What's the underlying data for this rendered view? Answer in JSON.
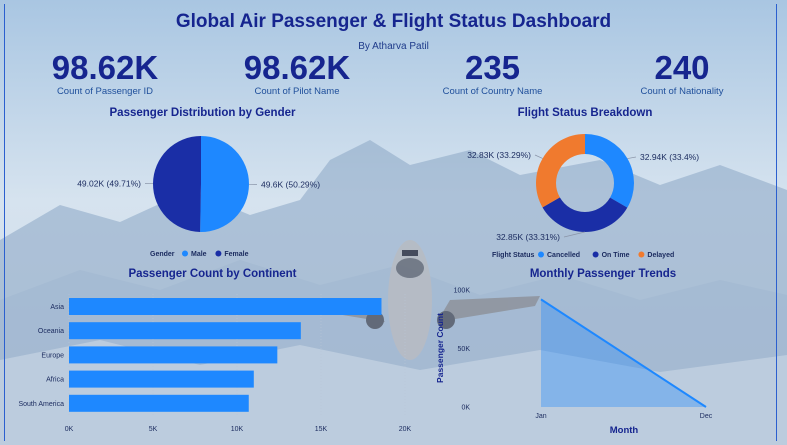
{
  "header": {
    "title": "Global Air Passenger & Flight Status Dashboard",
    "subtitle": "By Atharva Patil"
  },
  "kpis": [
    {
      "value": "98.62K",
      "label": "Count of Passenger ID"
    },
    {
      "value": "98.62K",
      "label": "Count of Pilot Name"
    },
    {
      "value": "235",
      "label": "Count of Country Name"
    },
    {
      "value": "240",
      "label": "Count of Nationality"
    }
  ],
  "colors": {
    "title": "#16258f",
    "male": "#1e88ff",
    "female": "#1a2ea6",
    "cancelled": "#1e88ff",
    "on_time": "#1a2ea6",
    "delayed": "#f07a2e",
    "bar": "#1e88ff",
    "area": "#1e88ff"
  },
  "chart_data": [
    {
      "type": "pie",
      "title": "Passenger Distribution by Gender",
      "legend_title": "Gender",
      "legend_position": "bottom",
      "slices": [
        {
          "name": "Male",
          "value": 49.6,
          "label": "49.6K (50.29%)",
          "color": "#1e88ff"
        },
        {
          "name": "Female",
          "value": 49.02,
          "label": "49.02K (49.71%)",
          "color": "#1a2ea6"
        }
      ]
    },
    {
      "type": "pie",
      "subtype": "donut",
      "title": "Flight Status Breakdown",
      "legend_title": "Flight Status",
      "legend_position": "bottom",
      "slices": [
        {
          "name": "Cancelled",
          "value": 32.94,
          "label": "32.94K (33.4%)",
          "color": "#1e88ff"
        },
        {
          "name": "On Time",
          "value": 32.85,
          "label": "32.85K (33.31%)",
          "color": "#1a2ea6"
        },
        {
          "name": "Delayed",
          "value": 32.83,
          "label": "32.83K (33.29%)",
          "color": "#f07a2e"
        }
      ]
    },
    {
      "type": "bar",
      "orientation": "horizontal",
      "title": "Passenger Count by Continent",
      "categories": [
        "Asia",
        "Oceania",
        "Europe",
        "Africa",
        "South America"
      ],
      "values": [
        18600,
        13800,
        12400,
        11000,
        10700
      ],
      "xlim": [
        0,
        20000
      ],
      "ticks": [
        {
          "value": 0,
          "label": "0K"
        },
        {
          "value": 5000,
          "label": "5K"
        },
        {
          "value": 10000,
          "label": "10K"
        },
        {
          "value": 15000,
          "label": "15K"
        },
        {
          "value": 20000,
          "label": "20K"
        }
      ],
      "grid": true
    },
    {
      "type": "area",
      "title": "Monthly Passenger Trends",
      "xlabel": "Month",
      "ylabel": "Passenger Count",
      "x": [
        "Jan",
        "Dec"
      ],
      "values": [
        92000,
        0
      ],
      "ylim": [
        0,
        100000
      ],
      "yticks": [
        {
          "value": 0,
          "label": "0K"
        },
        {
          "value": 50000,
          "label": "50K"
        },
        {
          "value": 100000,
          "label": "100K"
        }
      ]
    }
  ]
}
